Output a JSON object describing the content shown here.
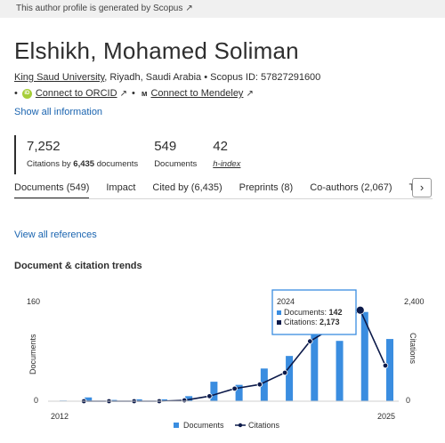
{
  "banner": {
    "text": "This author profile is generated by Scopus",
    "ext_icon": "external-link-icon"
  },
  "profile": {
    "name": "Elshikh, Mohamed Soliman",
    "university": "King Saud University",
    "location": ", Riyadh, Saudi Arabia",
    "scopus_id": "Scopus ID: 57827291600",
    "connect_orcid": "Connect to ORCID",
    "connect_mendeley": "Connect to Mendeley",
    "show_all": "Show all information"
  },
  "metrics": {
    "citations_value": "7,252",
    "citations_label_pre": "Citations by ",
    "citations_label_docs": "6,435",
    "citations_label_post": " documents",
    "documents_value": "549",
    "documents_label": "Documents",
    "hindex_value": "42",
    "hindex_label": "h-index"
  },
  "tabs": [
    "Documents (549)",
    "Impact",
    "Cited by (6,435)",
    "Preprints (8)",
    "Co-authors (2,067)",
    "To"
  ],
  "view_all_references": "View all references",
  "trends_title": "Document & citation trends",
  "colors": {
    "accent": "#1a64b0",
    "documents_bar": "#3a8de0",
    "citations_line": "#0c1a4a"
  },
  "chart_data": {
    "type": "bar",
    "years": [
      2012,
      2013,
      2014,
      2015,
      2016,
      2017,
      2018,
      2019,
      2020,
      2021,
      2022,
      2023,
      2024,
      2025
    ],
    "x_tick_labels": [
      "2012",
      "2025"
    ],
    "series": [
      {
        "name": "Documents",
        "type": "bar",
        "axis": "left",
        "values": [
          1,
          6,
          2,
          3,
          3,
          8,
          31,
          26,
          52,
          72,
          116,
          96,
          142,
          99
        ]
      },
      {
        "name": "Citations",
        "type": "line",
        "axis": "right",
        "values": [
          0,
          0,
          0,
          0,
          0,
          20,
          120,
          300,
          400,
          680,
          1430,
          1790,
          2173,
          850
        ]
      }
    ],
    "ylabel": "Documents",
    "ylabel_right": "Citations",
    "left_ticks": [
      "160",
      "0"
    ],
    "right_ticks": [
      "2,400",
      "0"
    ],
    "ylim_left": [
      0,
      160
    ],
    "ylim_right": [
      0,
      2400
    ],
    "legend": "bottom",
    "tooltip": {
      "title": "2024",
      "documents_label": "Documents: ",
      "documents_value": "142",
      "citations_label": "Citations: ",
      "citations_value": "2,173"
    }
  }
}
